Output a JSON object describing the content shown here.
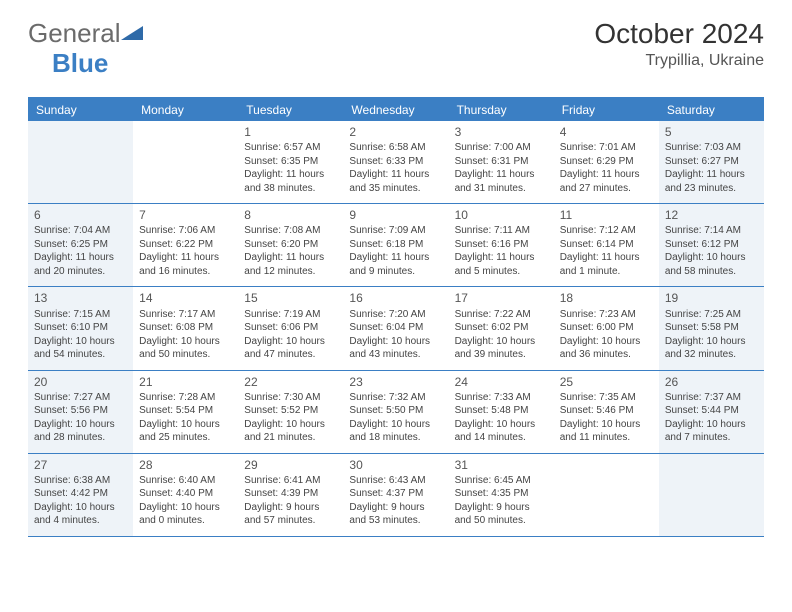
{
  "logo": {
    "part1": "General",
    "part2": "Blue"
  },
  "header": {
    "month_title": "October 2024",
    "location": "Trypillia, Ukraine"
  },
  "colors": {
    "accent": "#3b7fc4",
    "logo_gray": "#6b6b6b",
    "text": "#333333",
    "cell_text": "#444444",
    "shaded_bg": "#eef3f8",
    "border": "#3b7fc4"
  },
  "weekdays": [
    "Sunday",
    "Monday",
    "Tuesday",
    "Wednesday",
    "Thursday",
    "Friday",
    "Saturday"
  ],
  "weeks": [
    [
      null,
      null,
      {
        "num": "1",
        "sunrise": "Sunrise: 6:57 AM",
        "sunset": "Sunset: 6:35 PM",
        "daylight": "Daylight: 11 hours and 38 minutes."
      },
      {
        "num": "2",
        "sunrise": "Sunrise: 6:58 AM",
        "sunset": "Sunset: 6:33 PM",
        "daylight": "Daylight: 11 hours and 35 minutes."
      },
      {
        "num": "3",
        "sunrise": "Sunrise: 7:00 AM",
        "sunset": "Sunset: 6:31 PM",
        "daylight": "Daylight: 11 hours and 31 minutes."
      },
      {
        "num": "4",
        "sunrise": "Sunrise: 7:01 AM",
        "sunset": "Sunset: 6:29 PM",
        "daylight": "Daylight: 11 hours and 27 minutes."
      },
      {
        "num": "5",
        "sunrise": "Sunrise: 7:03 AM",
        "sunset": "Sunset: 6:27 PM",
        "daylight": "Daylight: 11 hours and 23 minutes."
      }
    ],
    [
      {
        "num": "6",
        "sunrise": "Sunrise: 7:04 AM",
        "sunset": "Sunset: 6:25 PM",
        "daylight": "Daylight: 11 hours and 20 minutes."
      },
      {
        "num": "7",
        "sunrise": "Sunrise: 7:06 AM",
        "sunset": "Sunset: 6:22 PM",
        "daylight": "Daylight: 11 hours and 16 minutes."
      },
      {
        "num": "8",
        "sunrise": "Sunrise: 7:08 AM",
        "sunset": "Sunset: 6:20 PM",
        "daylight": "Daylight: 11 hours and 12 minutes."
      },
      {
        "num": "9",
        "sunrise": "Sunrise: 7:09 AM",
        "sunset": "Sunset: 6:18 PM",
        "daylight": "Daylight: 11 hours and 9 minutes."
      },
      {
        "num": "10",
        "sunrise": "Sunrise: 7:11 AM",
        "sunset": "Sunset: 6:16 PM",
        "daylight": "Daylight: 11 hours and 5 minutes."
      },
      {
        "num": "11",
        "sunrise": "Sunrise: 7:12 AM",
        "sunset": "Sunset: 6:14 PM",
        "daylight": "Daylight: 11 hours and 1 minute."
      },
      {
        "num": "12",
        "sunrise": "Sunrise: 7:14 AM",
        "sunset": "Sunset: 6:12 PM",
        "daylight": "Daylight: 10 hours and 58 minutes."
      }
    ],
    [
      {
        "num": "13",
        "sunrise": "Sunrise: 7:15 AM",
        "sunset": "Sunset: 6:10 PM",
        "daylight": "Daylight: 10 hours and 54 minutes."
      },
      {
        "num": "14",
        "sunrise": "Sunrise: 7:17 AM",
        "sunset": "Sunset: 6:08 PM",
        "daylight": "Daylight: 10 hours and 50 minutes."
      },
      {
        "num": "15",
        "sunrise": "Sunrise: 7:19 AM",
        "sunset": "Sunset: 6:06 PM",
        "daylight": "Daylight: 10 hours and 47 minutes."
      },
      {
        "num": "16",
        "sunrise": "Sunrise: 7:20 AM",
        "sunset": "Sunset: 6:04 PM",
        "daylight": "Daylight: 10 hours and 43 minutes."
      },
      {
        "num": "17",
        "sunrise": "Sunrise: 7:22 AM",
        "sunset": "Sunset: 6:02 PM",
        "daylight": "Daylight: 10 hours and 39 minutes."
      },
      {
        "num": "18",
        "sunrise": "Sunrise: 7:23 AM",
        "sunset": "Sunset: 6:00 PM",
        "daylight": "Daylight: 10 hours and 36 minutes."
      },
      {
        "num": "19",
        "sunrise": "Sunrise: 7:25 AM",
        "sunset": "Sunset: 5:58 PM",
        "daylight": "Daylight: 10 hours and 32 minutes."
      }
    ],
    [
      {
        "num": "20",
        "sunrise": "Sunrise: 7:27 AM",
        "sunset": "Sunset: 5:56 PM",
        "daylight": "Daylight: 10 hours and 28 minutes."
      },
      {
        "num": "21",
        "sunrise": "Sunrise: 7:28 AM",
        "sunset": "Sunset: 5:54 PM",
        "daylight": "Daylight: 10 hours and 25 minutes."
      },
      {
        "num": "22",
        "sunrise": "Sunrise: 7:30 AM",
        "sunset": "Sunset: 5:52 PM",
        "daylight": "Daylight: 10 hours and 21 minutes."
      },
      {
        "num": "23",
        "sunrise": "Sunrise: 7:32 AM",
        "sunset": "Sunset: 5:50 PM",
        "daylight": "Daylight: 10 hours and 18 minutes."
      },
      {
        "num": "24",
        "sunrise": "Sunrise: 7:33 AM",
        "sunset": "Sunset: 5:48 PM",
        "daylight": "Daylight: 10 hours and 14 minutes."
      },
      {
        "num": "25",
        "sunrise": "Sunrise: 7:35 AM",
        "sunset": "Sunset: 5:46 PM",
        "daylight": "Daylight: 10 hours and 11 minutes."
      },
      {
        "num": "26",
        "sunrise": "Sunrise: 7:37 AM",
        "sunset": "Sunset: 5:44 PM",
        "daylight": "Daylight: 10 hours and 7 minutes."
      }
    ],
    [
      {
        "num": "27",
        "sunrise": "Sunrise: 6:38 AM",
        "sunset": "Sunset: 4:42 PM",
        "daylight": "Daylight: 10 hours and 4 minutes."
      },
      {
        "num": "28",
        "sunrise": "Sunrise: 6:40 AM",
        "sunset": "Sunset: 4:40 PM",
        "daylight": "Daylight: 10 hours and 0 minutes."
      },
      {
        "num": "29",
        "sunrise": "Sunrise: 6:41 AM",
        "sunset": "Sunset: 4:39 PM",
        "daylight": "Daylight: 9 hours and 57 minutes."
      },
      {
        "num": "30",
        "sunrise": "Sunrise: 6:43 AM",
        "sunset": "Sunset: 4:37 PM",
        "daylight": "Daylight: 9 hours and 53 minutes."
      },
      {
        "num": "31",
        "sunrise": "Sunrise: 6:45 AM",
        "sunset": "Sunset: 4:35 PM",
        "daylight": "Daylight: 9 hours and 50 minutes."
      },
      null,
      null
    ]
  ]
}
